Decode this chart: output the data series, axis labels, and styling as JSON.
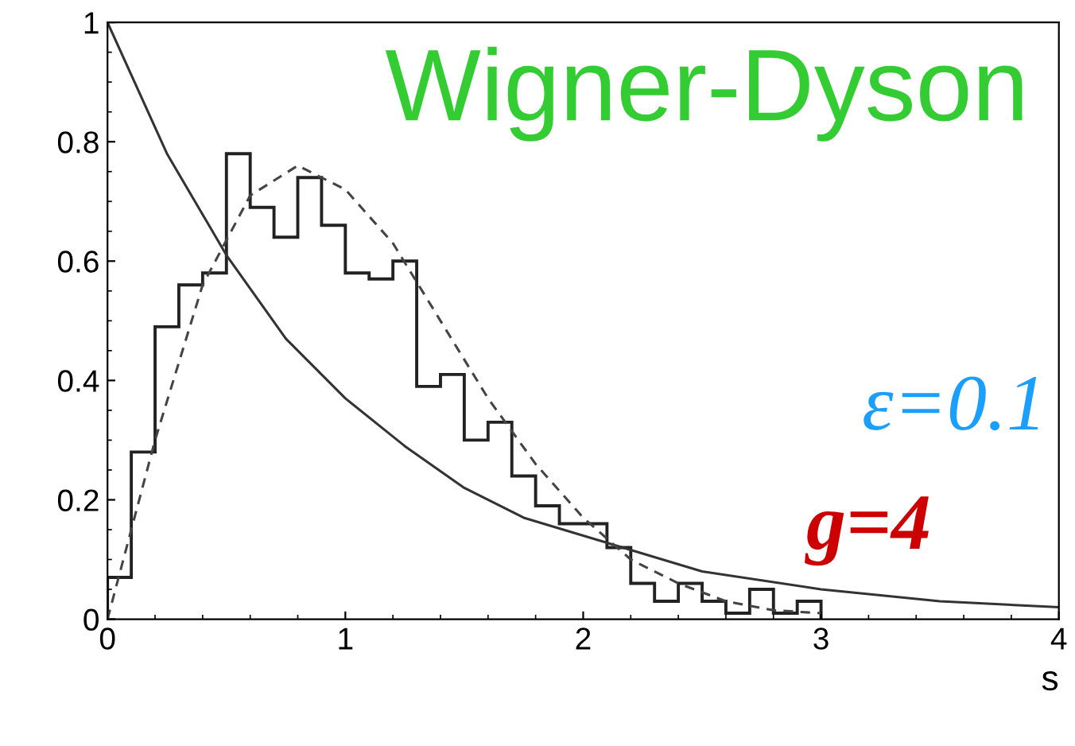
{
  "chart_data": {
    "type": "histogram",
    "xlabel": "s",
    "bins": [
      0,
      0.1,
      0.2,
      0.3,
      0.4,
      0.5,
      0.6,
      0.7,
      0.8,
      0.9,
      1.0,
      1.1,
      1.2,
      1.3,
      1.4,
      1.5,
      1.6,
      1.7,
      1.8,
      1.9,
      2.0,
      2.1,
      2.2,
      2.3,
      2.4,
      2.5,
      2.6,
      2.7,
      2.8,
      2.9,
      3.0
    ],
    "values": [
      0.07,
      0.28,
      0.49,
      0.56,
      0.58,
      0.78,
      0.69,
      0.64,
      0.74,
      0.66,
      0.58,
      0.57,
      0.6,
      0.39,
      0.41,
      0.3,
      0.33,
      0.24,
      0.19,
      0.16,
      0.16,
      0.12,
      0.06,
      0.03,
      0.06,
      0.03,
      0.01,
      0.05,
      0.01,
      0.03
    ],
    "color": "#222222",
    "series": [
      {
        "type": "line",
        "line_style": "solid",
        "color": "#333333",
        "x": [
          0,
          0.25,
          0.5,
          0.75,
          1.0,
          1.25,
          1.5,
          1.75,
          2.0,
          2.5,
          3.0,
          3.5,
          4.0
        ],
        "values": [
          1.0,
          0.78,
          0.61,
          0.47,
          0.37,
          0.29,
          0.22,
          0.17,
          0.14,
          0.08,
          0.05,
          0.03,
          0.02
        ]
      },
      {
        "type": "line",
        "line_style": "dashed",
        "color": "#444444",
        "x": [
          0,
          0.2,
          0.4,
          0.6,
          0.8,
          1.0,
          1.2,
          1.4,
          1.6,
          1.8,
          2.0,
          2.2,
          2.4,
          2.6,
          2.8,
          3.0
        ],
        "values": [
          0,
          0.3,
          0.56,
          0.71,
          0.76,
          0.72,
          0.63,
          0.5,
          0.37,
          0.26,
          0.17,
          0.1,
          0.06,
          0.03,
          0.015,
          0.01
        ]
      }
    ],
    "annotations": [
      "Wigner-Dyson",
      "ε=0.1",
      "g=4"
    ],
    "xlim": [
      0,
      4
    ],
    "ylim": [
      0,
      1
    ],
    "xticks": [
      0,
      1,
      2,
      3,
      4
    ],
    "yticks": [
      0,
      0.2,
      0.4,
      0.6,
      0.8,
      1
    ],
    "grid": false,
    "legend": false
  }
}
